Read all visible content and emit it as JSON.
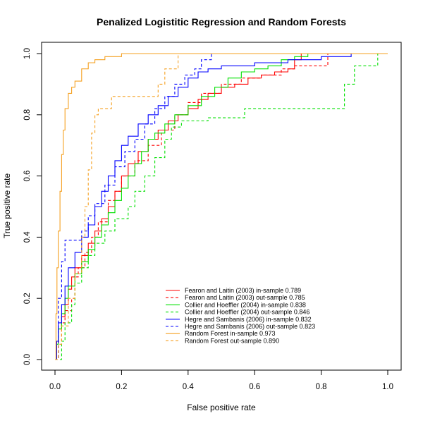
{
  "chart_data": {
    "type": "line",
    "title": "Penalized Logistitic Regression and Random Forests",
    "xlabel": "False positive rate",
    "ylabel": "True positive rate",
    "xlim": [
      0,
      1
    ],
    "ylim": [
      0,
      1
    ],
    "xticks": [
      "0.0",
      "0.2",
      "0.4",
      "0.6",
      "0.8",
      "1.0"
    ],
    "yticks": [
      "0.0",
      "0.2",
      "0.4",
      "0.6",
      "0.8",
      "1.0"
    ],
    "grid": false,
    "legend_position": "bottom-right",
    "series": [
      {
        "name": "Fearon and Laitin (2003) in-sample 0.789",
        "color": "#ff0000",
        "dash": "solid",
        "points": [
          [
            0,
            0
          ],
          [
            0.005,
            0.06
          ],
          [
            0.01,
            0.1
          ],
          [
            0.02,
            0.14
          ],
          [
            0.03,
            0.18
          ],
          [
            0.04,
            0.23
          ],
          [
            0.05,
            0.27
          ],
          [
            0.06,
            0.3
          ],
          [
            0.08,
            0.34
          ],
          [
            0.1,
            0.38
          ],
          [
            0.12,
            0.42
          ],
          [
            0.14,
            0.46
          ],
          [
            0.16,
            0.5
          ],
          [
            0.18,
            0.55
          ],
          [
            0.2,
            0.6
          ],
          [
            0.22,
            0.64
          ],
          [
            0.25,
            0.68
          ],
          [
            0.28,
            0.72
          ],
          [
            0.31,
            0.75
          ],
          [
            0.34,
            0.78
          ],
          [
            0.37,
            0.8
          ],
          [
            0.4,
            0.82
          ],
          [
            0.43,
            0.85
          ],
          [
            0.46,
            0.87
          ],
          [
            0.5,
            0.89
          ],
          [
            0.54,
            0.9
          ],
          [
            0.58,
            0.92
          ],
          [
            0.62,
            0.93
          ],
          [
            0.66,
            0.94
          ],
          [
            0.7,
            0.95
          ],
          [
            0.72,
            0.98
          ],
          [
            0.74,
            1.0
          ],
          [
            1,
            1.0
          ]
        ]
      },
      {
        "name": "Fearon and Laitin (2003) out-sample 0.785",
        "color": "#ff0000",
        "dash": "dashed",
        "points": [
          [
            0,
            0
          ],
          [
            0.01,
            0.06
          ],
          [
            0.02,
            0.12
          ],
          [
            0.03,
            0.16
          ],
          [
            0.05,
            0.2
          ],
          [
            0.06,
            0.27
          ],
          [
            0.07,
            0.3
          ],
          [
            0.09,
            0.35
          ],
          [
            0.11,
            0.4
          ],
          [
            0.13,
            0.45
          ],
          [
            0.16,
            0.52
          ],
          [
            0.18,
            0.55
          ],
          [
            0.2,
            0.6
          ],
          [
            0.24,
            0.65
          ],
          [
            0.28,
            0.7
          ],
          [
            0.32,
            0.75
          ],
          [
            0.36,
            0.8
          ],
          [
            0.4,
            0.84
          ],
          [
            0.44,
            0.87
          ],
          [
            0.5,
            0.9
          ],
          [
            0.56,
            0.92
          ],
          [
            0.62,
            0.93
          ],
          [
            0.68,
            0.95
          ],
          [
            0.72,
            0.96
          ],
          [
            0.82,
            0.96
          ],
          [
            0.82,
            1.0
          ],
          [
            1,
            1.0
          ]
        ]
      },
      {
        "name": "Collier and Hoeffler (2004) in-sample 0.838",
        "color": "#00e000",
        "dash": "solid",
        "points": [
          [
            0,
            0
          ],
          [
            0.005,
            0.05
          ],
          [
            0.01,
            0.1
          ],
          [
            0.02,
            0.15
          ],
          [
            0.03,
            0.2
          ],
          [
            0.04,
            0.24
          ],
          [
            0.06,
            0.28
          ],
          [
            0.08,
            0.32
          ],
          [
            0.1,
            0.36
          ],
          [
            0.12,
            0.4
          ],
          [
            0.14,
            0.44
          ],
          [
            0.16,
            0.48
          ],
          [
            0.18,
            0.52
          ],
          [
            0.2,
            0.56
          ],
          [
            0.22,
            0.6
          ],
          [
            0.24,
            0.64
          ],
          [
            0.26,
            0.68
          ],
          [
            0.28,
            0.72
          ],
          [
            0.3,
            0.74
          ],
          [
            0.33,
            0.77
          ],
          [
            0.36,
            0.8
          ],
          [
            0.4,
            0.83
          ],
          [
            0.44,
            0.86
          ],
          [
            0.48,
            0.89
          ],
          [
            0.52,
            0.92
          ],
          [
            0.56,
            0.94
          ],
          [
            0.6,
            0.95
          ],
          [
            0.64,
            0.96
          ],
          [
            0.68,
            0.98
          ],
          [
            0.72,
            0.99
          ],
          [
            0.76,
            1.0
          ],
          [
            1,
            1.0
          ]
        ]
      },
      {
        "name": "Collier and Hoeffler (2004) out-sample 0.846",
        "color": "#00e000",
        "dash": "dashed",
        "points": [
          [
            0,
            0
          ],
          [
            0.02,
            0.06
          ],
          [
            0.03,
            0.12
          ],
          [
            0.05,
            0.18
          ],
          [
            0.06,
            0.25
          ],
          [
            0.08,
            0.3
          ],
          [
            0.1,
            0.34
          ],
          [
            0.12,
            0.38
          ],
          [
            0.15,
            0.42
          ],
          [
            0.18,
            0.46
          ],
          [
            0.22,
            0.5
          ],
          [
            0.24,
            0.55
          ],
          [
            0.27,
            0.6
          ],
          [
            0.3,
            0.66
          ],
          [
            0.33,
            0.72
          ],
          [
            0.35,
            0.76
          ],
          [
            0.38,
            0.78
          ],
          [
            0.46,
            0.79
          ],
          [
            0.5,
            0.79
          ],
          [
            0.57,
            0.82
          ],
          [
            0.85,
            0.82
          ],
          [
            0.87,
            0.9
          ],
          [
            0.9,
            0.96
          ],
          [
            0.97,
            1.0
          ],
          [
            1,
            1.0
          ]
        ]
      },
      {
        "name": "Hegre and Sambanis (2006) in-sample 0.832",
        "color": "#0000ff",
        "dash": "solid",
        "points": [
          [
            0,
            0
          ],
          [
            0.005,
            0.06
          ],
          [
            0.01,
            0.12
          ],
          [
            0.02,
            0.18
          ],
          [
            0.03,
            0.24
          ],
          [
            0.04,
            0.3
          ],
          [
            0.06,
            0.35
          ],
          [
            0.08,
            0.4
          ],
          [
            0.1,
            0.44
          ],
          [
            0.12,
            0.5
          ],
          [
            0.14,
            0.55
          ],
          [
            0.16,
            0.6
          ],
          [
            0.18,
            0.65
          ],
          [
            0.2,
            0.7
          ],
          [
            0.22,
            0.73
          ],
          [
            0.25,
            0.77
          ],
          [
            0.28,
            0.8
          ],
          [
            0.31,
            0.83
          ],
          [
            0.34,
            0.86
          ],
          [
            0.37,
            0.89
          ],
          [
            0.4,
            0.92
          ],
          [
            0.43,
            0.94
          ],
          [
            0.46,
            0.95
          ],
          [
            0.5,
            0.96
          ],
          [
            0.6,
            0.97
          ],
          [
            0.7,
            0.98
          ],
          [
            0.8,
            0.99
          ],
          [
            0.89,
            1.0
          ],
          [
            1,
            1.0
          ]
        ]
      },
      {
        "name": "Hegre and Sambanis (2006) out-sample 0.823",
        "color": "#0000ff",
        "dash": "dashed",
        "points": [
          [
            0,
            0
          ],
          [
            0.01,
            0.2
          ],
          [
            0.02,
            0.32
          ],
          [
            0.03,
            0.39
          ],
          [
            0.06,
            0.39
          ],
          [
            0.08,
            0.42
          ],
          [
            0.1,
            0.47
          ],
          [
            0.12,
            0.51
          ],
          [
            0.15,
            0.57
          ],
          [
            0.18,
            0.63
          ],
          [
            0.21,
            0.68
          ],
          [
            0.24,
            0.72
          ],
          [
            0.27,
            0.77
          ],
          [
            0.3,
            0.82
          ],
          [
            0.33,
            0.86
          ],
          [
            0.36,
            0.9
          ],
          [
            0.39,
            0.93
          ],
          [
            0.42,
            0.95
          ],
          [
            0.44,
            0.98
          ],
          [
            0.47,
            1.0
          ],
          [
            1,
            1.0
          ]
        ]
      },
      {
        "name": "Random Forest in-sample 0.973",
        "color": "#f5a020",
        "dash": "solid",
        "points": [
          [
            0,
            0
          ],
          [
            0.003,
            0.15
          ],
          [
            0.006,
            0.3
          ],
          [
            0.01,
            0.42
          ],
          [
            0.015,
            0.55
          ],
          [
            0.02,
            0.67
          ],
          [
            0.025,
            0.75
          ],
          [
            0.03,
            0.82
          ],
          [
            0.04,
            0.87
          ],
          [
            0.05,
            0.89
          ],
          [
            0.06,
            0.91
          ],
          [
            0.08,
            0.95
          ],
          [
            0.1,
            0.97
          ],
          [
            0.12,
            0.98
          ],
          [
            0.15,
            0.99
          ],
          [
            0.2,
            1.0
          ],
          [
            1,
            1.0
          ]
        ]
      },
      {
        "name": "Random Forest out-sample 0.890",
        "color": "#f5a020",
        "dash": "dashed",
        "points": [
          [
            0,
            0
          ],
          [
            0.01,
            0.05
          ],
          [
            0.02,
            0.11
          ],
          [
            0.04,
            0.2
          ],
          [
            0.06,
            0.28
          ],
          [
            0.08,
            0.4
          ],
          [
            0.09,
            0.5
          ],
          [
            0.1,
            0.62
          ],
          [
            0.11,
            0.74
          ],
          [
            0.12,
            0.8
          ],
          [
            0.13,
            0.82
          ],
          [
            0.15,
            0.82
          ],
          [
            0.17,
            0.86
          ],
          [
            0.28,
            0.86
          ],
          [
            0.31,
            0.9
          ],
          [
            0.33,
            0.95
          ],
          [
            0.37,
            1.0
          ],
          [
            1,
            1.0
          ]
        ]
      }
    ]
  }
}
